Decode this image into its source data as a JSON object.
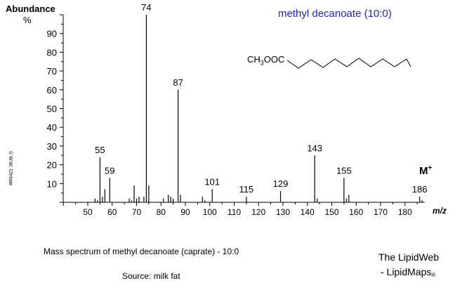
{
  "title": "methyl decanoate (10:0)",
  "formula_prefix": "CH",
  "formula_sub": "3",
  "formula_suffix": "OOC",
  "caption": "Mass spectrum of methyl decanoate (caprate) - 10:0",
  "source": "Source:  milk fat",
  "brand_line1": "The LipidWeb",
  "brand_line2": "- LipidMaps",
  "brand_mark": "®",
  "copyright": "© W.W. Christie",
  "molecular_ion_label": "M",
  "molecular_ion_sup": "+",
  "chart_data": {
    "type": "bar",
    "ylabel": "Abundance",
    "yunit": "%",
    "xlabel": "m/z",
    "xlim": [
      40,
      188
    ],
    "ylim": [
      0,
      100
    ],
    "x_ticks": [
      50,
      60,
      70,
      80,
      90,
      100,
      110,
      120,
      130,
      140,
      150,
      160,
      170,
      180
    ],
    "y_ticks": [
      10,
      20,
      30,
      40,
      50,
      60,
      70,
      80,
      90
    ],
    "grid": false,
    "peaks": [
      {
        "mz": 53,
        "abundance": 2
      },
      {
        "mz": 54,
        "abundance": 1
      },
      {
        "mz": 55,
        "abundance": 24,
        "label": "55"
      },
      {
        "mz": 56,
        "abundance": 3
      },
      {
        "mz": 57,
        "abundance": 7
      },
      {
        "mz": 59,
        "abundance": 13,
        "label": "59"
      },
      {
        "mz": 67,
        "abundance": 2
      },
      {
        "mz": 68,
        "abundance": 1
      },
      {
        "mz": 69,
        "abundance": 9
      },
      {
        "mz": 70,
        "abundance": 2
      },
      {
        "mz": 71,
        "abundance": 3
      },
      {
        "mz": 73,
        "abundance": 3
      },
      {
        "mz": 74,
        "abundance": 100,
        "label": "74"
      },
      {
        "mz": 75,
        "abundance": 9
      },
      {
        "mz": 81,
        "abundance": 2
      },
      {
        "mz": 83,
        "abundance": 4
      },
      {
        "mz": 84,
        "abundance": 3
      },
      {
        "mz": 85,
        "abundance": 2
      },
      {
        "mz": 87,
        "abundance": 60,
        "label": "87"
      },
      {
        "mz": 88,
        "abundance": 4
      },
      {
        "mz": 97,
        "abundance": 3
      },
      {
        "mz": 98,
        "abundance": 1
      },
      {
        "mz": 101,
        "abundance": 7,
        "label": "101"
      },
      {
        "mz": 115,
        "abundance": 3,
        "label": "115"
      },
      {
        "mz": 129,
        "abundance": 6,
        "label": "129"
      },
      {
        "mz": 143,
        "abundance": 25,
        "label": "143"
      },
      {
        "mz": 144,
        "abundance": 2
      },
      {
        "mz": 155,
        "abundance": 13,
        "label": "155"
      },
      {
        "mz": 156,
        "abundance": 2
      },
      {
        "mz": 157,
        "abundance": 4
      },
      {
        "mz": 186,
        "abundance": 3,
        "label": "186"
      },
      {
        "mz": 187,
        "abundance": 1
      }
    ]
  }
}
